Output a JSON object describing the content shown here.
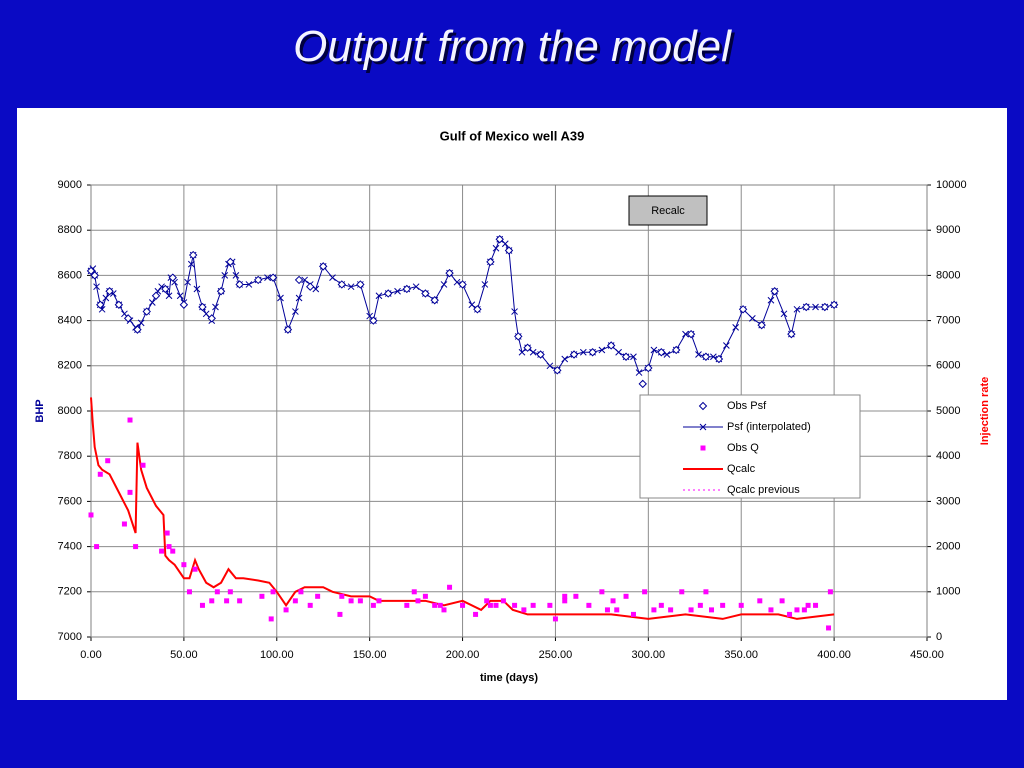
{
  "slide_title": "Output from the model",
  "button_label": "Recalc",
  "chart_data": {
    "type": "line",
    "title": "Gulf of Mexico well A39",
    "xlabel": "time (days)",
    "ylabel": "BHP",
    "y2label": "Injection rate",
    "xlim": [
      0,
      450
    ],
    "xticks": [
      {
        "value": 0,
        "label": "0.00"
      },
      {
        "value": 50,
        "label": "50.00"
      },
      {
        "value": 100,
        "label": "100.00"
      },
      {
        "value": 150,
        "label": "150.00"
      },
      {
        "value": 200,
        "label": "200.00"
      },
      {
        "value": 250,
        "label": "250.00"
      },
      {
        "value": 300,
        "label": "300.00"
      },
      {
        "value": 350,
        "label": "350.00"
      },
      {
        "value": 400,
        "label": "400.00"
      },
      {
        "value": 450,
        "label": "450.00"
      }
    ],
    "ylim": [
      7000,
      9000
    ],
    "yticks": [
      7000,
      7200,
      7400,
      7600,
      7800,
      8000,
      8200,
      8400,
      8600,
      8800,
      9000
    ],
    "y2lim": [
      0,
      10000
    ],
    "y2ticks": [
      0,
      1000,
      2000,
      3000,
      4000,
      5000,
      6000,
      7000,
      8000,
      9000,
      10000
    ],
    "grid": true,
    "series": [
      {
        "name": "Obs Psf",
        "color": "#000099",
        "marker": "diamond",
        "line": "none",
        "x": [
          0,
          2,
          5,
          10,
          15,
          20,
          25,
          30,
          35,
          40,
          44,
          50,
          55,
          60,
          65,
          70,
          75,
          80,
          90,
          98,
          106,
          112,
          118,
          125,
          135,
          145,
          152,
          160,
          170,
          180,
          185,
          193,
          200,
          208,
          215,
          220,
          225,
          230,
          235,
          242,
          251,
          260,
          270,
          280,
          288,
          297,
          300,
          307,
          315,
          323,
          331,
          338,
          351,
          361,
          368,
          377,
          385,
          395,
          400
        ],
        "values": [
          8620,
          8600,
          8470,
          8530,
          8470,
          8410,
          8360,
          8440,
          8510,
          8540,
          8590,
          8470,
          8690,
          8460,
          8410,
          8530,
          8660,
          8560,
          8580,
          8590,
          8360,
          8580,
          8550,
          8640,
          8560,
          8560,
          8400,
          8520,
          8540,
          8520,
          8490,
          8610,
          8560,
          8450,
          8660,
          8760,
          8710,
          8330,
          8280,
          8250,
          8180,
          8250,
          8260,
          8290,
          8240,
          8120,
          8190,
          8260,
          8270,
          8340,
          8240,
          8230,
          8450,
          8380,
          8530,
          8340,
          8460,
          8460,
          8470
        ]
      },
      {
        "name": "Psf (interpolated)",
        "color": "#000099",
        "marker": "x",
        "line": "solid",
        "x": [
          0,
          1,
          2,
          3,
          5,
          6,
          8,
          10,
          12,
          15,
          18,
          21,
          24,
          25,
          27,
          30,
          33,
          36,
          38,
          40,
          42,
          43,
          45,
          48,
          50,
          52,
          54,
          55,
          57,
          60,
          62,
          65,
          67,
          70,
          72,
          74,
          76,
          78,
          80,
          85,
          90,
          95,
          98,
          102,
          106,
          110,
          112,
          115,
          118,
          121,
          125,
          130,
          135,
          140,
          145,
          150,
          152,
          155,
          160,
          165,
          170,
          175,
          180,
          185,
          190,
          193,
          197,
          200,
          205,
          208,
          212,
          215,
          218,
          220,
          223,
          225,
          228,
          230,
          232,
          235,
          238,
          242,
          247,
          251,
          255,
          260,
          265,
          270,
          275,
          280,
          284,
          288,
          292,
          295,
          300,
          303,
          307,
          310,
          315,
          320,
          323,
          327,
          331,
          335,
          338,
          342,
          347,
          351,
          356,
          361,
          366,
          368,
          373,
          377,
          380,
          385,
          390,
          395,
          400
        ],
        "values": [
          8620,
          8630,
          8600,
          8550,
          8470,
          8450,
          8500,
          8530,
          8520,
          8470,
          8430,
          8400,
          8370,
          8360,
          8390,
          8440,
          8480,
          8530,
          8550,
          8540,
          8510,
          8590,
          8570,
          8510,
          8480,
          8570,
          8650,
          8690,
          8540,
          8460,
          8430,
          8400,
          8460,
          8530,
          8600,
          8650,
          8660,
          8600,
          8560,
          8560,
          8580,
          8590,
          8590,
          8500,
          8360,
          8440,
          8500,
          8580,
          8560,
          8540,
          8640,
          8590,
          8560,
          8550,
          8560,
          8420,
          8400,
          8510,
          8520,
          8530,
          8540,
          8550,
          8520,
          8490,
          8560,
          8610,
          8570,
          8560,
          8470,
          8450,
          8560,
          8660,
          8720,
          8760,
          8740,
          8710,
          8440,
          8330,
          8260,
          8280,
          8260,
          8250,
          8200,
          8180,
          8230,
          8250,
          8260,
          8260,
          8270,
          8290,
          8260,
          8240,
          8240,
          8170,
          8190,
          8270,
          8260,
          8250,
          8270,
          8340,
          8340,
          8250,
          8240,
          8240,
          8230,
          8290,
          8370,
          8450,
          8410,
          8380,
          8490,
          8530,
          8430,
          8340,
          8450,
          8460,
          8460,
          8460,
          8470
        ]
      },
      {
        "name": "Obs Q",
        "color": "#ff00ff",
        "marker": "square",
        "line": "none",
        "axis": "y2",
        "x": [
          0,
          3,
          5,
          9,
          18,
          21,
          21,
          24,
          28,
          38,
          41,
          42,
          44,
          50,
          53,
          56,
          60,
          65,
          68,
          73,
          75,
          80,
          92,
          97,
          98,
          105,
          110,
          113,
          118,
          122,
          134,
          135,
          140,
          145,
          152,
          155,
          170,
          174,
          176,
          180,
          185,
          188,
          190,
          193,
          200,
          207,
          213,
          215,
          218,
          222,
          228,
          233,
          238,
          247,
          250,
          255,
          255,
          261,
          268,
          275,
          278,
          281,
          283,
          288,
          292,
          298,
          303,
          307,
          312,
          318,
          323,
          328,
          331,
          334,
          340,
          350,
          360,
          366,
          372,
          376,
          380,
          384,
          386,
          390,
          397,
          398
        ],
        "values": [
          2700,
          2000,
          3600,
          3900,
          2500,
          3200,
          4800,
          2000,
          3800,
          1900,
          2300,
          2000,
          1900,
          1600,
          1000,
          1500,
          700,
          800,
          1000,
          800,
          1000,
          800,
          900,
          400,
          1000,
          600,
          800,
          1000,
          700,
          900,
          500,
          900,
          800,
          800,
          700,
          800,
          700,
          1000,
          800,
          900,
          700,
          700,
          600,
          1100,
          700,
          500,
          800,
          700,
          700,
          800,
          700,
          600,
          700,
          700,
          400,
          900,
          800,
          900,
          700,
          1000,
          600,
          800,
          600,
          900,
          500,
          1000,
          600,
          700,
          600,
          1000,
          600,
          700,
          1000,
          600,
          700,
          700,
          800,
          600,
          800,
          500,
          600,
          600,
          700,
          700,
          200,
          1000
        ]
      },
      {
        "name": "Qcalc",
        "color": "#ff0000",
        "marker": "none",
        "line": "solid",
        "axis": "y2",
        "x": [
          0,
          1,
          2,
          4,
          6,
          10,
          15,
          20,
          24,
          25,
          27,
          30,
          35,
          39,
          40,
          42,
          45,
          50,
          53,
          56,
          58,
          62,
          66,
          70,
          74,
          78,
          82,
          90,
          96,
          100,
          105,
          110,
          115,
          125,
          130,
          140,
          150,
          155,
          165,
          180,
          190,
          200,
          210,
          215,
          222,
          227,
          235,
          250,
          260,
          280,
          300,
          320,
          340,
          350,
          360,
          370,
          380,
          400
        ],
        "values": [
          5300,
          4700,
          4200,
          3800,
          3700,
          3600,
          3200,
          2800,
          2300,
          4300,
          3700,
          3300,
          2900,
          2700,
          1800,
          1700,
          1600,
          1300,
          1300,
          1700,
          1500,
          1200,
          1100,
          1200,
          1500,
          1300,
          1300,
          1250,
          1200,
          1000,
          700,
          1000,
          1100,
          1100,
          1000,
          900,
          900,
          800,
          800,
          800,
          700,
          800,
          600,
          800,
          800,
          600,
          500,
          500,
          500,
          500,
          400,
          500,
          400,
          500,
          500,
          500,
          400,
          500
        ]
      },
      {
        "name": "Qcalc previous",
        "color": "#ff00ff",
        "marker": "none",
        "line": "dotted",
        "axis": "y2",
        "x": [
          0,
          1,
          2,
          4,
          6,
          10,
          15,
          20,
          24,
          25,
          27,
          30,
          35,
          39,
          40,
          42,
          45,
          50,
          53,
          56,
          58,
          62,
          66,
          70,
          74,
          78,
          82,
          90,
          96,
          100,
          105,
          110,
          115,
          125,
          130,
          140,
          150,
          155,
          165,
          180,
          190,
          200,
          210,
          215,
          222,
          227,
          235,
          250,
          260,
          280,
          300,
          320,
          340,
          350,
          360,
          370,
          380,
          400
        ],
        "values": [
          5300,
          4700,
          4200,
          3800,
          3700,
          3600,
          3200,
          2800,
          2300,
          4300,
          3700,
          3300,
          2900,
          2700,
          1800,
          1700,
          1600,
          1300,
          1300,
          1700,
          1500,
          1200,
          1100,
          1200,
          1500,
          1300,
          1300,
          1250,
          1200,
          1000,
          700,
          1000,
          1100,
          1100,
          1000,
          900,
          900,
          800,
          800,
          800,
          700,
          800,
          600,
          800,
          800,
          600,
          500,
          500,
          500,
          500,
          400,
          500,
          400,
          500,
          500,
          500,
          400,
          500
        ]
      }
    ]
  }
}
